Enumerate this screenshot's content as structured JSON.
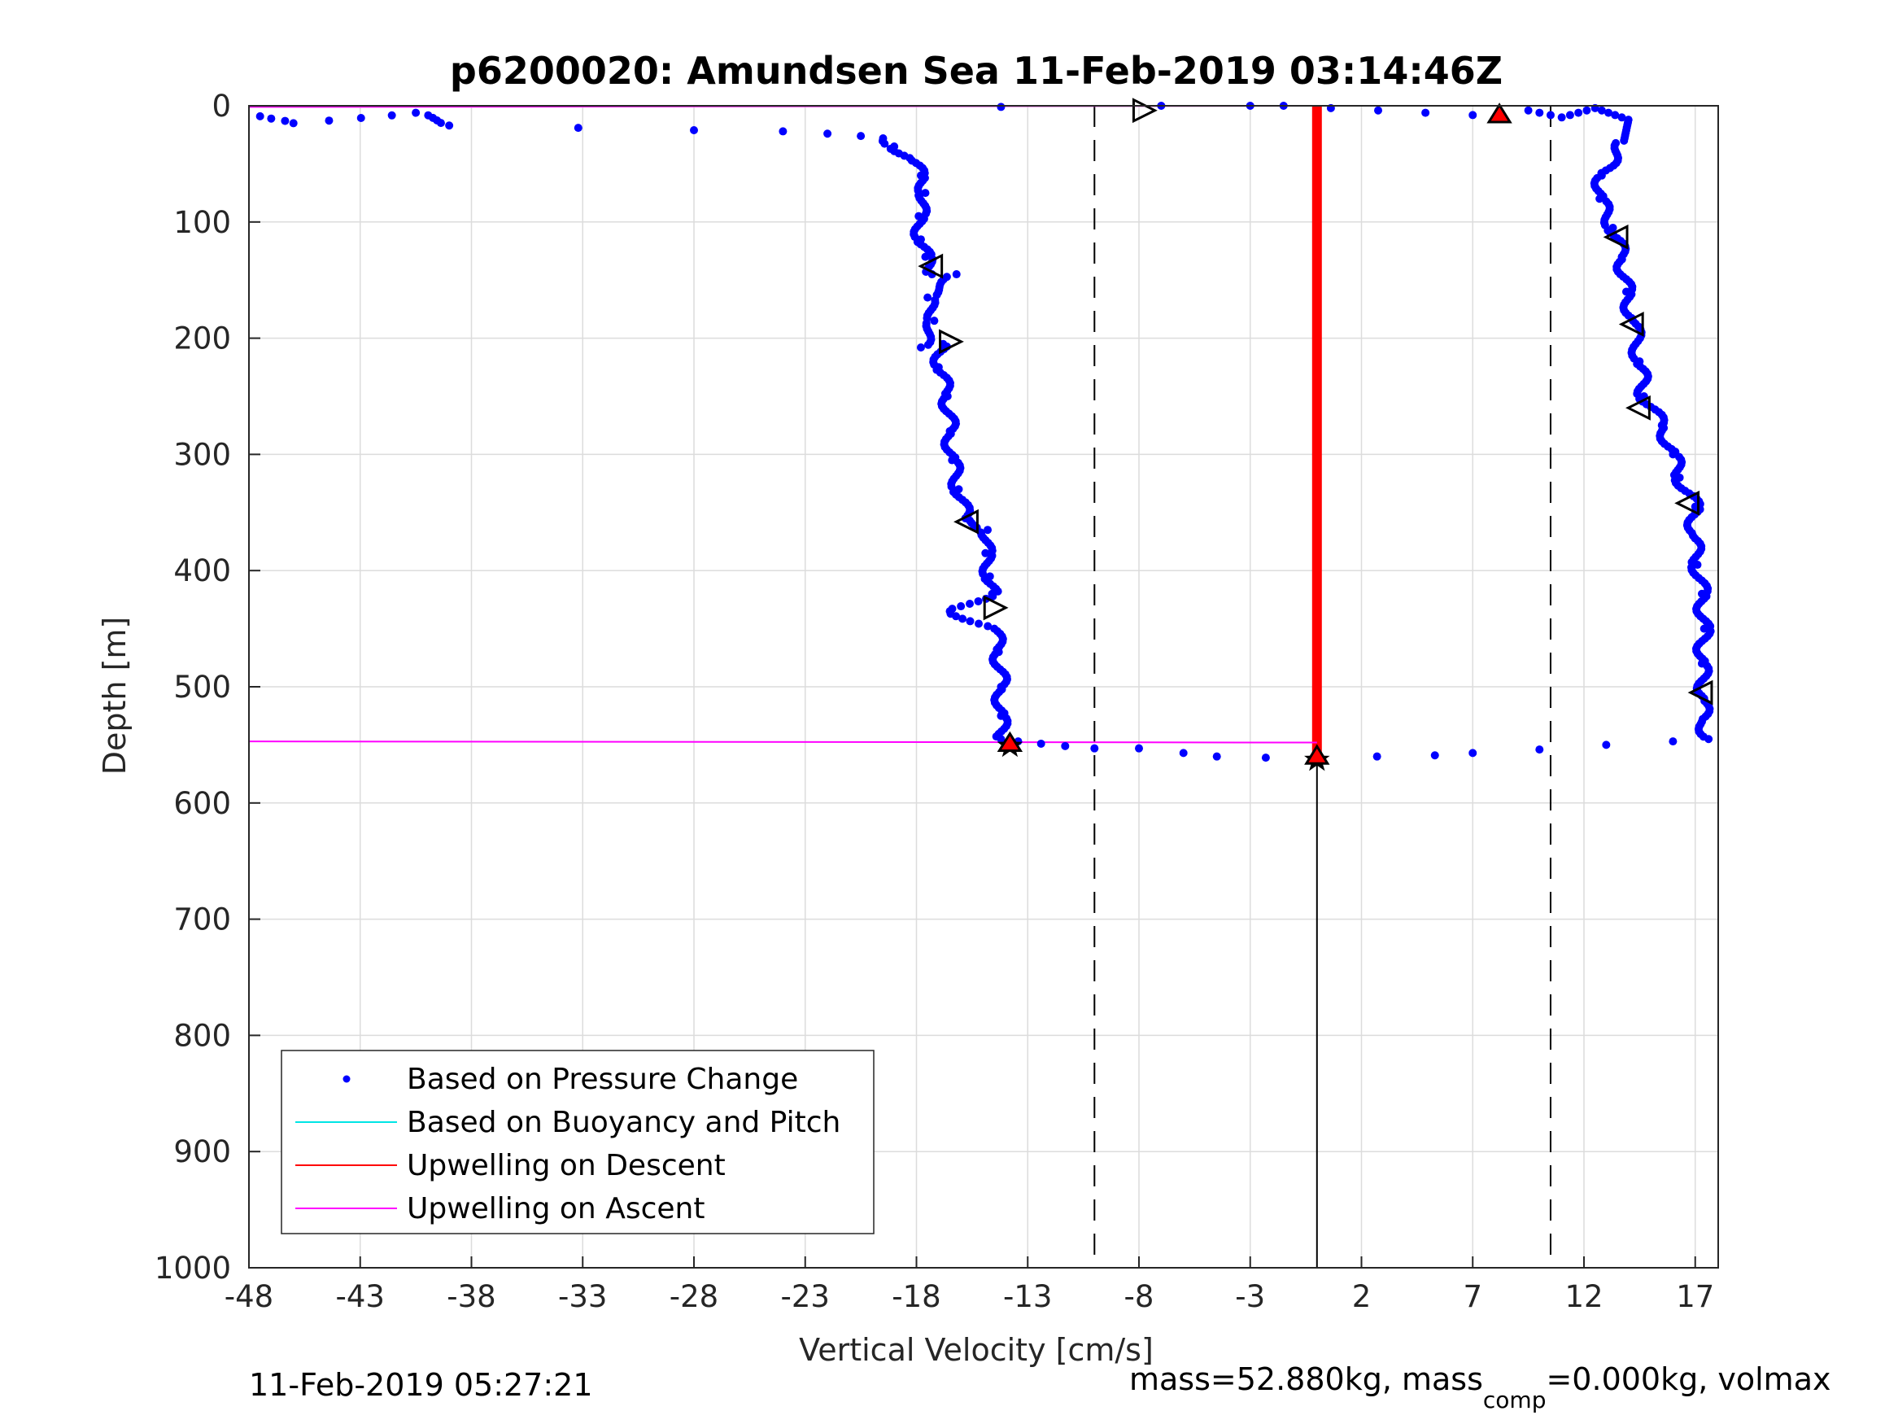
{
  "chart_data": {
    "type": "scatter",
    "title": "p6200020: Amundsen Sea 11-Feb-2019 03:14:46Z",
    "xlabel": "Vertical Velocity [cm/s]",
    "ylabel": "Depth [m]",
    "xlim": [
      -48,
      18
    ],
    "ylim": [
      0,
      1000
    ],
    "y_reversed": true,
    "x_ticks": [
      "-48",
      "-43",
      "-38",
      "-33",
      "-28",
      "-23",
      "-18",
      "-13",
      "-8",
      "-3",
      "2",
      "7",
      "12",
      "17"
    ],
    "y_ticks": [
      "0",
      "100",
      "200",
      "300",
      "400",
      "500",
      "600",
      "700",
      "800",
      "900",
      "1000"
    ],
    "grid": true,
    "legend_position": "bottom-left",
    "legend": [
      {
        "label": "Based on Pressure Change",
        "style": "dot",
        "color": "#0000ff"
      },
      {
        "label": "Based on Buoyancy and Pitch",
        "style": "line",
        "color": "#00e5e5"
      },
      {
        "label": "Upwelling on Descent",
        "style": "line",
        "color": "#ff0000"
      },
      {
        "label": "Upwelling on Ascent",
        "style": "line",
        "color": "#ff00ff"
      }
    ],
    "series": [
      {
        "name": "Based on Pressure Change",
        "color": "#0000ff",
        "descent_profile": [
          [
            -47.5,
            9
          ],
          [
            -46,
            15
          ],
          [
            -40.5,
            6
          ],
          [
            -39,
            17
          ],
          [
            -33.2,
            19
          ],
          [
            -28,
            21
          ],
          [
            -24,
            22
          ],
          [
            -22,
            24
          ],
          [
            -20.5,
            26
          ],
          [
            -19.5,
            28
          ],
          [
            -19,
            35
          ],
          [
            -18.3,
            45
          ],
          [
            -17.8,
            60
          ],
          [
            -17.6,
            75
          ],
          [
            -17.9,
            95
          ],
          [
            -17.8,
            115
          ],
          [
            -17.6,
            130
          ],
          [
            -17.3,
            145
          ],
          [
            -16.2,
            145
          ],
          [
            -17.5,
            165
          ],
          [
            -17.2,
            185
          ],
          [
            -17.8,
            208
          ],
          [
            -16.8,
            205
          ],
          [
            -17.0,
            225
          ],
          [
            -16.6,
            250
          ],
          [
            -16.5,
            280
          ],
          [
            -16.4,
            305
          ],
          [
            -16.1,
            330
          ],
          [
            -15.8,
            355
          ],
          [
            -14.8,
            365
          ],
          [
            -14.9,
            385
          ],
          [
            -14.7,
            405
          ],
          [
            -14.6,
            420
          ],
          [
            -16.5,
            435
          ],
          [
            -14.5,
            450
          ],
          [
            -14.3,
            470
          ],
          [
            -14.2,
            500
          ],
          [
            -14.2,
            525
          ],
          [
            -14.2,
            545
          ],
          [
            -10,
            553
          ],
          [
            -8,
            553
          ],
          [
            -6,
            557
          ],
          [
            -4.5,
            560
          ],
          [
            -2.3,
            561
          ]
        ],
        "ascent_profile": [
          [
            -14.2,
            1
          ],
          [
            -7,
            0
          ],
          [
            -3,
            0
          ],
          [
            -1.5,
            0
          ],
          [
            7,
            8
          ],
          [
            9.5,
            4
          ],
          [
            11,
            10
          ],
          [
            12.5,
            2
          ],
          [
            14,
            12
          ],
          [
            13.8,
            30
          ],
          [
            12.8,
            60
          ],
          [
            12.7,
            80
          ],
          [
            13.3,
            105
          ],
          [
            13.7,
            130
          ],
          [
            13.9,
            160
          ],
          [
            14.2,
            185
          ],
          [
            14.5,
            220
          ],
          [
            14.7,
            250
          ],
          [
            15.5,
            275
          ],
          [
            16,
            300
          ],
          [
            16.3,
            320
          ],
          [
            17,
            345
          ],
          [
            16.9,
            370
          ],
          [
            17.1,
            395
          ],
          [
            17.3,
            420
          ],
          [
            17.4,
            450
          ],
          [
            17.3,
            480
          ],
          [
            17.4,
            510
          ],
          [
            17.3,
            530
          ],
          [
            17.6,
            545
          ],
          [
            16,
            547
          ],
          [
            13,
            550
          ],
          [
            10,
            554
          ],
          [
            7,
            557
          ],
          [
            5.3,
            559
          ],
          [
            2.7,
            560
          ]
        ]
      },
      {
        "name": "Upwelling on Descent",
        "color": "#ff0000",
        "x": [
          0,
          0
        ],
        "depth": [
          0,
          560
        ]
      },
      {
        "name": "Upwelling on Ascent",
        "color": "#ff00ff",
        "segments": [
          [
            [
              -48,
              1
            ],
            [
              0,
              0
            ]
          ],
          [
            [
              -48,
              547
            ],
            [
              0,
              548
            ]
          ]
        ]
      }
    ],
    "reference_lines": [
      {
        "style": "dashed",
        "x": -10,
        "color": "#000000"
      },
      {
        "style": "dashed",
        "x": 10.5,
        "color": "#000000"
      },
      {
        "style": "solid",
        "x": 0,
        "from_depth": 560,
        "to_depth": 1000,
        "color": "#000000"
      }
    ],
    "markers": [
      {
        "shape": "triangle-right",
        "x": -7.8,
        "y": 4
      },
      {
        "shape": "triangle-left",
        "x": -17.3,
        "y": 138
      },
      {
        "shape": "triangle-right",
        "x": -16.5,
        "y": 203
      },
      {
        "shape": "triangle-left",
        "x": -15.7,
        "y": 358
      },
      {
        "shape": "triangle-right",
        "x": -14.5,
        "y": 432
      },
      {
        "shape": "triangle-left",
        "x": 13.5,
        "y": 113
      },
      {
        "shape": "triangle-left",
        "x": 14.2,
        "y": 188
      },
      {
        "shape": "triangle-left",
        "x": 14.5,
        "y": 260
      },
      {
        "shape": "triangle-left",
        "x": 16.7,
        "y": 342
      },
      {
        "shape": "triangle-left",
        "x": 17.3,
        "y": 505
      },
      {
        "shape": "star",
        "x": -13.8,
        "y": 551
      },
      {
        "shape": "star",
        "x": 0,
        "y": 563
      },
      {
        "shape": "red-triangle",
        "x": 8.2,
        "y": 7
      },
      {
        "shape": "red-triangle",
        "x": -13.8,
        "y": 548
      },
      {
        "shape": "red-triangle",
        "x": 0,
        "y": 559
      }
    ]
  },
  "footer": {
    "timestamp": "11-Feb-2019 05:27:21",
    "params_main": "mass=52.880kg, mass",
    "params_sub": "comp",
    "params_rest": "=0.000kg, volmax"
  }
}
